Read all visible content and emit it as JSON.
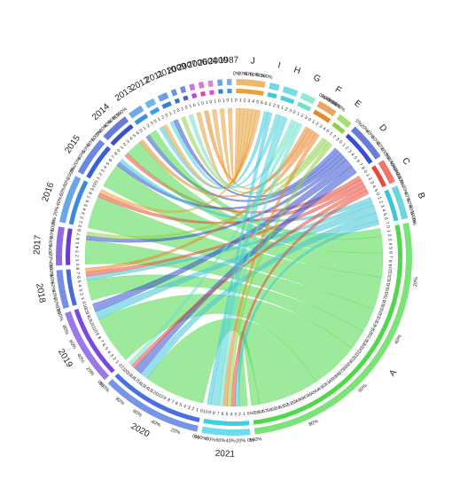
{
  "chart_data": {
    "type": "chord",
    "sectors": [
      {
        "name": "J",
        "color": "#e8a03a"
      },
      {
        "name": "I",
        "color": "#40c8e0"
      },
      {
        "name": "H",
        "color": "#4ad0d8"
      },
      {
        "name": "G",
        "color": "#6fe0c8"
      },
      {
        "name": "F",
        "color": "#e8862a"
      },
      {
        "name": "E",
        "color": "#8fd24a"
      },
      {
        "name": "D",
        "color": "#3550d0"
      },
      {
        "name": "C",
        "color": "#e84a3a"
      },
      {
        "name": "B",
        "color": "#3fc4d6"
      },
      {
        "name": "A",
        "color": "#4fd94a"
      },
      {
        "name": "2021",
        "color": "#3ad0e8"
      },
      {
        "name": "2020",
        "color": "#4a70e0"
      },
      {
        "name": "2019",
        "color": "#7a4ae0"
      },
      {
        "name": "2018",
        "color": "#4a6ad8"
      },
      {
        "name": "2017",
        "color": "#6a3ad8"
      },
      {
        "name": "2016",
        "color": "#3a8ae0"
      },
      {
        "name": "2015",
        "color": "#3a60d8"
      },
      {
        "name": "2014",
        "color": "#3a50c8"
      },
      {
        "name": "2013",
        "color": "#3a90e0"
      },
      {
        "name": "2012",
        "color": "#3aa0e0"
      },
      {
        "name": "2011",
        "color": "#3a80d8"
      },
      {
        "name": "2010",
        "color": "#3a70d0"
      },
      {
        "name": "2009",
        "color": "#4a60d0"
      },
      {
        "name": "2007",
        "color": "#c040e0"
      },
      {
        "name": "2006",
        "color": "#e040c0"
      },
      {
        "name": "2004",
        "color": "#e050d0"
      },
      {
        "name": "2000",
        "color": "#3a80e0"
      },
      {
        "name": "1987",
        "color": "#4a90e0"
      }
    ],
    "links": [
      {
        "source": "1987",
        "target": "J",
        "value": 1
      },
      {
        "source": "2000",
        "target": "J",
        "value": 1
      },
      {
        "source": "2004",
        "target": "J",
        "value": 1
      },
      {
        "source": "2006",
        "target": "F",
        "value": 1
      },
      {
        "source": "2007",
        "target": "J",
        "value": 1
      },
      {
        "source": "2009",
        "target": "G",
        "value": 1
      },
      {
        "source": "2010",
        "target": "E",
        "value": 1
      },
      {
        "source": "2011",
        "target": "H",
        "value": 1
      },
      {
        "source": "2011",
        "target": "D",
        "value": 1
      },
      {
        "source": "2012",
        "target": "I",
        "value": 1
      },
      {
        "source": "2012",
        "target": "J",
        "value": 1
      },
      {
        "source": "2013",
        "target": "D",
        "value": 1
      },
      {
        "source": "2013",
        "target": "A",
        "value": 2
      },
      {
        "source": "2014",
        "target": "C",
        "value": 1
      },
      {
        "source": "2014",
        "target": "A",
        "value": 4
      },
      {
        "source": "2014",
        "target": "F",
        "value": 1
      },
      {
        "source": "2015",
        "target": "A",
        "value": 6
      },
      {
        "source": "2015",
        "target": "D",
        "value": 1
      },
      {
        "source": "2015",
        "target": "B",
        "value": 1
      },
      {
        "source": "2016",
        "target": "A",
        "value": 8
      },
      {
        "source": "2016",
        "target": "C",
        "value": 1
      },
      {
        "source": "2016",
        "target": "J",
        "value": 1
      },
      {
        "source": "2017",
        "target": "A",
        "value": 6
      },
      {
        "source": "2017",
        "target": "D",
        "value": 1
      },
      {
        "source": "2017",
        "target": "E",
        "value": 1
      },
      {
        "source": "2018",
        "target": "A",
        "value": 5
      },
      {
        "source": "2018",
        "target": "B",
        "value": 1
      },
      {
        "source": "2018",
        "target": "C",
        "value": 1
      },
      {
        "source": "2018",
        "target": "F",
        "value": 1
      },
      {
        "source": "2019",
        "target": "A",
        "value": 12
      },
      {
        "source": "2019",
        "target": "B",
        "value": 2
      },
      {
        "source": "2019",
        "target": "D",
        "value": 2
      },
      {
        "source": "2020",
        "target": "A",
        "value": 15
      },
      {
        "source": "2020",
        "target": "B",
        "value": 2
      },
      {
        "source": "2020",
        "target": "D",
        "value": 2
      },
      {
        "source": "2020",
        "target": "C",
        "value": 1
      },
      {
        "source": "2020",
        "target": "G",
        "value": 1
      },
      {
        "source": "2021",
        "target": "A",
        "value": 2
      },
      {
        "source": "2021",
        "target": "B",
        "value": 1
      },
      {
        "source": "2021",
        "target": "C",
        "value": 1
      },
      {
        "source": "2021",
        "target": "E",
        "value": 1
      },
      {
        "source": "2021",
        "target": "F",
        "value": 1
      },
      {
        "source": "2021",
        "target": "G",
        "value": 1
      },
      {
        "source": "2021",
        "target": "H",
        "value": 2
      },
      {
        "source": "2021",
        "target": "I",
        "value": 1
      }
    ],
    "percent_ticks": [
      {
        "value": 0,
        "label": "0%"
      },
      {
        "value": 20,
        "label": "20%"
      },
      {
        "value": 40,
        "label": "40%"
      },
      {
        "value": 60,
        "label": "60%"
      },
      {
        "value": 80,
        "label": "80%"
      },
      {
        "value": 100,
        "label": "100%"
      }
    ],
    "count_ticks": [
      0,
      1,
      2,
      3,
      4,
      5,
      6,
      7,
      8,
      9,
      10,
      11,
      12,
      13,
      14,
      15,
      16,
      17,
      18,
      19,
      20,
      21,
      22,
      23,
      24,
      25,
      26,
      27,
      28,
      29,
      30,
      31,
      32,
      33,
      34,
      35,
      36,
      37,
      38,
      39,
      40,
      41,
      42,
      43,
      44,
      45,
      46,
      47,
      48,
      49,
      50,
      51,
      52,
      53,
      54,
      55,
      56,
      57,
      58,
      59,
      60
    ]
  }
}
